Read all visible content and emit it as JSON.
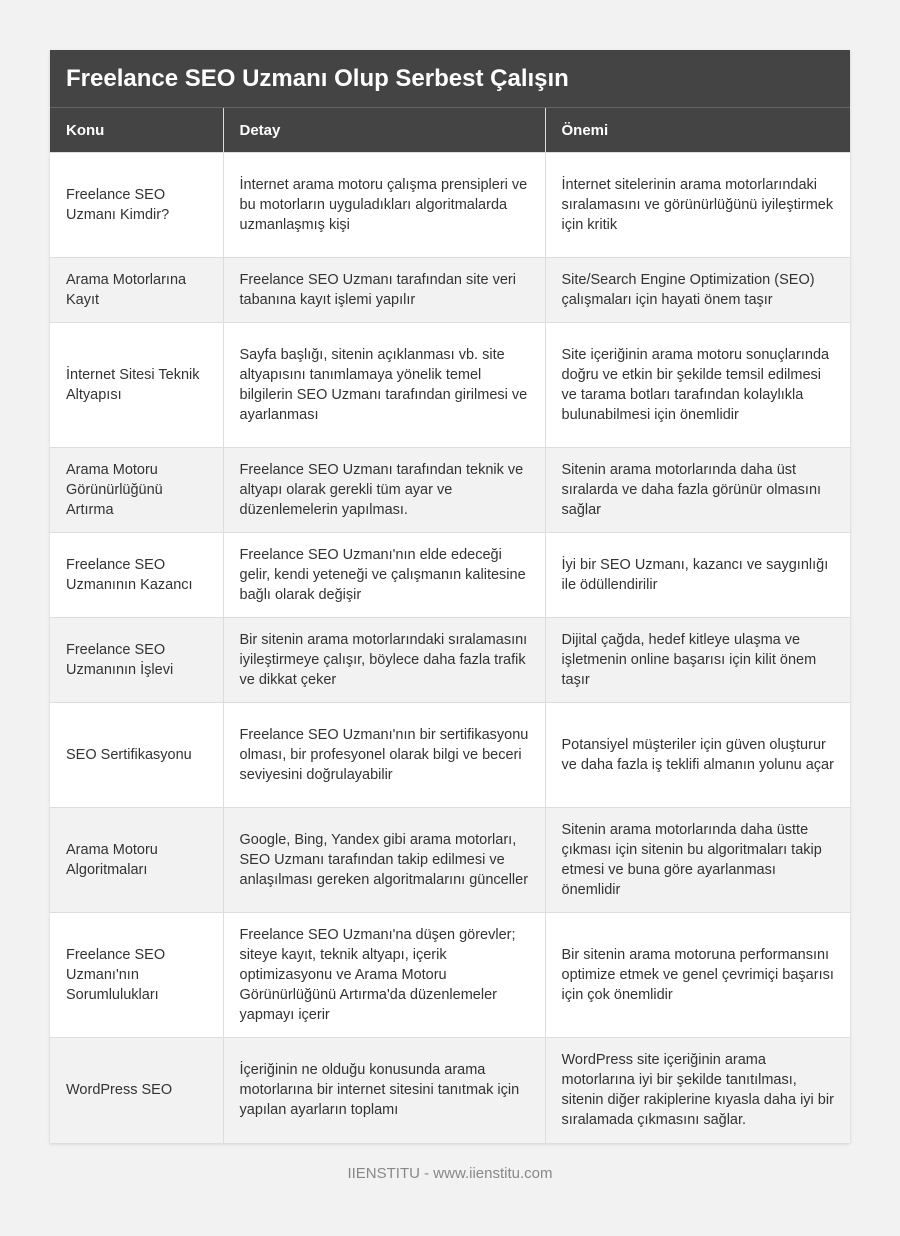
{
  "title": "Freelance SEO Uzmanı Olup Serbest Çalışın",
  "columns": [
    "Konu",
    "Detay",
    "Önemi"
  ],
  "rows": [
    [
      "Freelance SEO Uzmanı Kimdir?",
      "İnternet arama motoru çalışma prensipleri ve bu motorların uyguladıkları algoritmalarda uzmanlaşmış kişi",
      "İnternet sitelerinin arama motorlarındaki sıralamasını ve görünürlüğünü iyileştirmek için kritik"
    ],
    [
      "Arama Motorlarına Kayıt",
      "Freelance SEO Uzmanı tarafından site veri tabanına kayıt işlemi yapılır",
      "Site/Search Engine Optimization (SEO) çalışmaları için hayati önem taşır"
    ],
    [
      "İnternet Sitesi Teknik Altyapısı",
      "Sayfa başlığı, sitenin açıklanması vb. site altyapısını tanımlamaya yönelik temel bilgilerin SEO Uzmanı tarafından girilmesi ve ayarlanması",
      "Site içeriğinin arama motoru sonuçlarında doğru ve etkin bir şekilde temsil edilmesi ve tarama botları tarafından kolaylıkla bulunabilmesi için önemlidir"
    ],
    [
      "Arama Motoru Görünürlüğünü Artırma",
      "Freelance SEO Uzmanı tarafından teknik ve altyapı olarak gerekli tüm ayar ve düzenlemelerin yapılması.",
      "Sitenin arama motorlarında daha üst sıralarda ve daha fazla görünür olmasını sağlar"
    ],
    [
      "Freelance SEO Uzmanının Kazancı",
      "Freelance SEO Uzmanı'nın elde edeceği gelir, kendi yeteneği ve çalışmanın kalitesine bağlı olarak değişir",
      "İyi bir SEO Uzmanı, kazancı ve saygınlığı ile ödüllendirilir"
    ],
    [
      "Freelance SEO Uzmanının İşlevi",
      "Bir sitenin arama motorlarındaki sıralamasını iyileştirmeye çalışır, böylece daha fazla trafik ve dikkat çeker",
      "Dijital çağda, hedef kitleye ulaşma ve işletmenin online başarısı için kilit önem taşır"
    ],
    [
      "SEO Sertifikasyonu",
      "Freelance SEO Uzmanı'nın bir sertifikasyonu olması, bir profesyonel olarak bilgi ve beceri seviyesini doğrulayabilir",
      "Potansiyel müşteriler için güven oluşturur ve daha fazla iş teklifi almanın yolunu açar"
    ],
    [
      "Arama Motoru Algoritmaları",
      "Google, Bing, Yandex gibi arama motorları, SEO Uzmanı tarafından takip edilmesi ve anlaşılması gereken algoritmalarını günceller",
      "Sitenin arama motorlarında daha üstte çıkması için sitenin bu algoritmaları takip etmesi ve buna göre ayarlanması önemlidir"
    ],
    [
      "Freelance SEO Uzmanı'nın Sorumlulukları",
      "Freelance SEO Uzmanı'na düşen görevler; siteye kayıt, teknik altyapı, içerik optimizasyonu ve Arama Motoru Görünürlüğünü Artırma'da düzenlemeler yapmayı içerir",
      "Bir sitenin arama motoruna performansını optimize etmek ve genel çevrimiçi başarısı için çok önemlidir"
    ],
    [
      "WordPress SEO",
      "İçeriğinin ne olduğu konusunda arama motorlarına bir internet sitesini tanıtmak için yapılan ayarların toplamı",
      "WordPress site içeriğinin arama motorlarına iyi bir şekilde tanıtılması, sitenin diğer rakiplerine kıyasla daha iyi bir sıralamada çıkmasını sağlar."
    ]
  ],
  "footer": "IIENSTITU - www.iienstitu.com"
}
